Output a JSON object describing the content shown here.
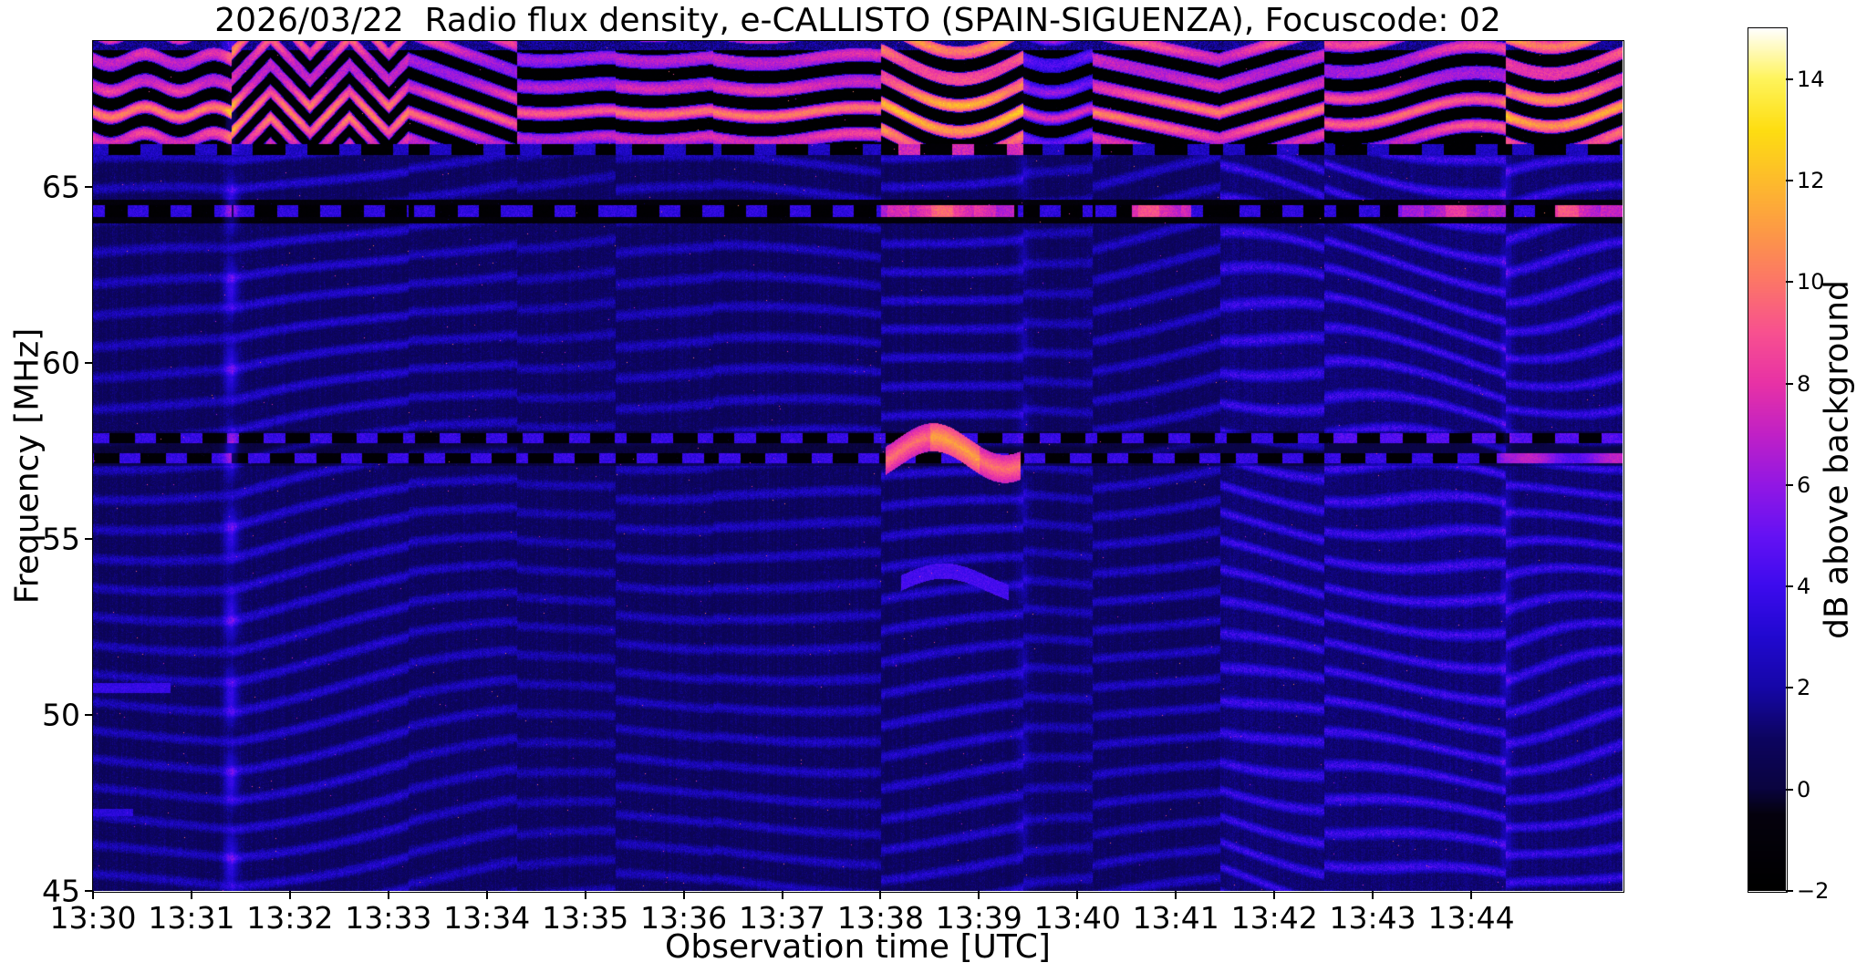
{
  "figure": {
    "background": "#ffffff"
  },
  "chart_data": {
    "type": "heatmap",
    "subtype": "radio-spectrogram",
    "title": "2026/03/22  Radio flux density, e-CALLISTO (SPAIN-SIGUENZA), Focuscode: 02",
    "xlabel": "Observation time [UTC]",
    "ylabel": "Frequency [MHz]",
    "x_ticks": [
      "13:30",
      "13:31",
      "13:32",
      "13:33",
      "13:34",
      "13:35",
      "13:36",
      "13:37",
      "13:38",
      "13:39",
      "13:40",
      "13:41",
      "13:42",
      "13:43",
      "13:44"
    ],
    "x_range_minutes": [
      0,
      15.54
    ],
    "y_ticks": [
      45,
      50,
      55,
      60,
      65
    ],
    "y_range_mhz": [
      45,
      69.15
    ],
    "grid": false,
    "legend": "colorbar-right",
    "colorbar": {
      "label": "dB above background",
      "tick_values": [
        -2,
        0,
        2,
        4,
        6,
        8,
        10,
        12,
        14
      ],
      "tick_labels": [
        "−2",
        "0",
        "2",
        "4",
        "6",
        "8",
        "10",
        "12",
        "14"
      ],
      "range": [
        -2,
        15
      ],
      "colormap_stops": [
        [
          0.0,
          "000000"
        ],
        [
          0.088,
          "05020e"
        ],
        [
          0.118,
          "0a0440"
        ],
        [
          0.176,
          "0d0560"
        ],
        [
          0.235,
          "1607a8"
        ],
        [
          0.294,
          "2109d0"
        ],
        [
          0.353,
          "3d0bee"
        ],
        [
          0.412,
          "6612f4"
        ],
        [
          0.471,
          "9318e4"
        ],
        [
          0.529,
          "c121c6"
        ],
        [
          0.588,
          "e832a6"
        ],
        [
          0.647,
          "f85190"
        ],
        [
          0.706,
          "fc7668"
        ],
        [
          0.765,
          "fd9a46"
        ],
        [
          0.824,
          "fdbc2c"
        ],
        [
          0.882,
          "fede12"
        ],
        [
          0.941,
          "fff45c"
        ],
        [
          1.0,
          "ffffff"
        ]
      ]
    },
    "features": {
      "background_level_db": 0.7,
      "ripple": {
        "spacing_mhz": 0.85,
        "wobble": 0.22
      },
      "bright_right": {
        "t_start": 11.45,
        "extra": 0.3
      },
      "segments": [
        {
          "t0": 0.0,
          "t1": 1.4,
          "slope": 0.05,
          "amp": 1.5,
          "boost": 1.3,
          "pat": [
            "sin",
            0.2,
            9.0
          ]
        },
        {
          "t0": 1.4,
          "t1": 3.2,
          "slope": -0.5,
          "amp": 1.9,
          "boost": 1.6,
          "pat": [
            "tri",
            0.8,
            0.8
          ]
        },
        {
          "t0": 3.2,
          "t1": 4.3,
          "slope": -0.35,
          "amp": 1.6,
          "boost": 0.7,
          "pat": [
            "lin",
            1.35
          ]
        },
        {
          "t0": 4.3,
          "t1": 5.3,
          "slope": -0.1,
          "amp": 1.3,
          "boost": 0.25,
          "pat": [
            "sin",
            0.07,
            5.0
          ]
        },
        {
          "t0": 5.3,
          "t1": 6.3,
          "slope": 0.05,
          "amp": 1.5,
          "boost": 0.9,
          "pat": [
            "sin",
            0.1,
            4.0
          ]
        },
        {
          "t0": 6.3,
          "t1": 8.0,
          "slope": 0.12,
          "amp": 1.6,
          "boost": 1.2,
          "pat": [
            "sin",
            0.18,
            3.2
          ]
        },
        {
          "t0": 8.0,
          "t1": 9.45,
          "slope": -0.25,
          "amp": 1.9,
          "boost": 3.2,
          "pat": [
            "sin",
            0.75,
            2.6,
            -0.5
          ]
        },
        {
          "t0": 9.45,
          "t1": 10.15,
          "slope": 0.0,
          "amp": 1.4,
          "boost": -1.2,
          "pat": [
            "sin",
            0.25,
            5.5
          ]
        },
        {
          "t0": 10.15,
          "t1": 11.45,
          "slope": -0.45,
          "amp": 1.7,
          "boost": 1.4,
          "pat": [
            "lin",
            0.8
          ]
        },
        {
          "t0": 11.45,
          "t1": 12.5,
          "slope": 0.55,
          "amp": 2.5,
          "boost": 1.2,
          "pat": [
            "lin",
            -1.1
          ]
        },
        {
          "t0": 12.5,
          "t1": 14.35,
          "slope": 0.4,
          "amp": 2.6,
          "boost": 0.9,
          "pat": [
            "sin",
            0.5,
            2.4,
            1.0
          ]
        },
        {
          "t0": 14.35,
          "t1": 15.55,
          "slope": -0.35,
          "amp": 2.4,
          "boost": 2.6,
          "pat": [
            "sin",
            0.55,
            2.8,
            0.3
          ]
        }
      ],
      "band_top": {
        "f_min": 66.22,
        "row_center": 66.95,
        "row_spacing": 0.75,
        "separator": [
          65.92,
          66.22
        ],
        "note": "strong RFI band, black/orange zigzag stripes"
      },
      "line64": {
        "freq": 64.32,
        "half_width": 0.17,
        "dark_half_width": 0.34,
        "dash_period": 0.44,
        "bright_intervals": [
          [
            8.0,
            9.35,
            7.6
          ],
          [
            10.55,
            11.15,
            7.0
          ],
          [
            13.25,
            14.35,
            6.3
          ],
          [
            14.85,
            15.55,
            7.2
          ]
        ]
      },
      "line57": {
        "freqs": [
          57.88,
          57.3
        ],
        "half_width": 0.14,
        "dash_period": 0.47,
        "burst": {
          "t": [
            8.05,
            9.42
          ],
          "center": 57.45,
          "swing": 0.45,
          "rate": 4.3,
          "peak": 9.4
        },
        "arc": {
          "t": [
            8.2,
            9.3
          ],
          "center": 53.75,
          "swing": 0.35,
          "rate": 3.6,
          "level": 3.6
        },
        "tail": {
          "t": [
            14.25,
            15.55
          ],
          "freq": 57.3,
          "level": 5.3
        }
      },
      "vertical_lines": [
        {
          "t": 1.4,
          "k": 2.0,
          "w": 2.6
        },
        {
          "t": 9.45,
          "k": 0.85,
          "w": 2.0
        },
        {
          "t": 14.35,
          "k": 0.95,
          "w": 2.0
        }
      ],
      "streaks": [
        {
          "t": [
            0,
            0.78
          ],
          "f": 50.78,
          "hw": 0.14,
          "level": 3.2
        },
        {
          "t": [
            0,
            0.4
          ],
          "f": 47.25,
          "hw": 0.1,
          "level": 2.8
        }
      ]
    }
  }
}
